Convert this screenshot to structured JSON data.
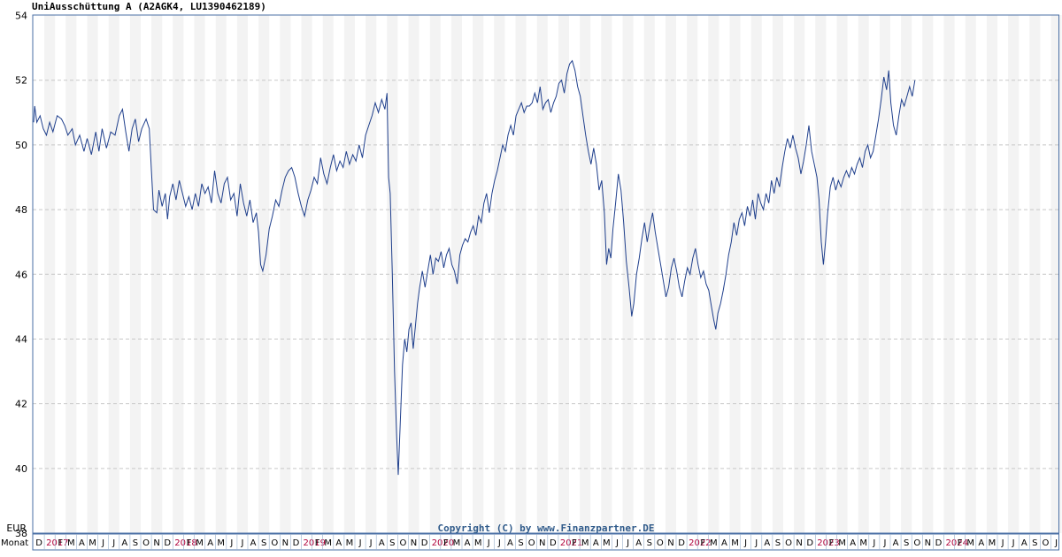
{
  "chart_data": {
    "type": "line",
    "title": "UniAusschüttung A (A2AGK4, LU1390462189)",
    "ylabel": "EUR",
    "xlabel": "Monat",
    "ylim": [
      38,
      54
    ],
    "yticks": [
      38,
      40,
      42,
      44,
      46,
      48,
      50,
      52,
      54
    ],
    "grid": true,
    "copyright": "Copyright (C) by www.Finanzpartner.DE",
    "x_start": "2016-12",
    "month_letters": [
      "J",
      "F",
      "M",
      "A",
      "M",
      "J",
      "J",
      "A",
      "S",
      "O",
      "N",
      "D"
    ],
    "year_labels": [
      "2017",
      "2018",
      "2019",
      "2020",
      "2021",
      "2022",
      "2023",
      "2024",
      "2025",
      "2026"
    ],
    "first_month_label": "D",
    "last_month_label": "J",
    "colors": {
      "line": "#1f3f8c",
      "axis": "#4a6fa5",
      "year": "#b0003a",
      "band": "#f3f3f3",
      "copyright": "#2f5a8a"
    },
    "series": [
      {
        "values": [
          [
            0,
            50.7
          ],
          [
            0.1,
            51.2
          ],
          [
            0.3,
            50.7
          ],
          [
            0.6,
            50.9
          ],
          [
            0.9,
            50.5
          ],
          [
            1.2,
            50.3
          ],
          [
            1.5,
            50.7
          ],
          [
            1.8,
            50.4
          ],
          [
            2.2,
            50.9
          ],
          [
            2.6,
            50.8
          ],
          [
            2.9,
            50.6
          ],
          [
            3.2,
            50.3
          ],
          [
            3.6,
            50.5
          ],
          [
            3.9,
            50.0
          ],
          [
            4.3,
            50.3
          ],
          [
            4.7,
            49.8
          ],
          [
            5.0,
            50.2
          ],
          [
            5.4,
            49.7
          ],
          [
            5.8,
            50.4
          ],
          [
            6.1,
            49.8
          ],
          [
            6.4,
            50.5
          ],
          [
            6.8,
            49.9
          ],
          [
            7.2,
            50.4
          ],
          [
            7.6,
            50.3
          ],
          [
            8.0,
            50.9
          ],
          [
            8.3,
            51.1
          ],
          [
            8.6,
            50.4
          ],
          [
            8.9,
            49.8
          ],
          [
            9.2,
            50.5
          ],
          [
            9.5,
            50.8
          ],
          [
            9.8,
            50.1
          ],
          [
            10.1,
            50.5
          ],
          [
            10.5,
            50.8
          ],
          [
            10.8,
            50.5
          ],
          [
            11.0,
            49.2
          ],
          [
            11.2,
            48.0
          ],
          [
            11.5,
            47.9
          ],
          [
            11.7,
            48.6
          ],
          [
            12.0,
            48.1
          ],
          [
            12.3,
            48.5
          ],
          [
            12.5,
            47.7
          ],
          [
            12.7,
            48.4
          ],
          [
            13.0,
            48.8
          ],
          [
            13.3,
            48.3
          ],
          [
            13.6,
            48.9
          ],
          [
            13.9,
            48.5
          ],
          [
            14.2,
            48.1
          ],
          [
            14.5,
            48.4
          ],
          [
            14.8,
            48.0
          ],
          [
            15.1,
            48.5
          ],
          [
            15.4,
            48.1
          ],
          [
            15.7,
            48.8
          ],
          [
            16.0,
            48.5
          ],
          [
            16.3,
            48.7
          ],
          [
            16.6,
            48.2
          ],
          [
            16.9,
            49.2
          ],
          [
            17.2,
            48.5
          ],
          [
            17.5,
            48.2
          ],
          [
            17.8,
            48.8
          ],
          [
            18.1,
            49.0
          ],
          [
            18.4,
            48.3
          ],
          [
            18.7,
            48.5
          ],
          [
            19.0,
            47.8
          ],
          [
            19.3,
            48.8
          ],
          [
            19.6,
            48.2
          ],
          [
            19.9,
            47.8
          ],
          [
            20.2,
            48.3
          ],
          [
            20.5,
            47.6
          ],
          [
            20.8,
            47.9
          ],
          [
            21.0,
            47.3
          ],
          [
            21.2,
            46.3
          ],
          [
            21.4,
            46.1
          ],
          [
            21.7,
            46.6
          ],
          [
            22.0,
            47.4
          ],
          [
            22.3,
            47.8
          ],
          [
            22.6,
            48.3
          ],
          [
            22.9,
            48.1
          ],
          [
            23.2,
            48.6
          ],
          [
            23.5,
            49.0
          ],
          [
            23.8,
            49.2
          ],
          [
            24.1,
            49.3
          ],
          [
            24.4,
            49.0
          ],
          [
            24.7,
            48.5
          ],
          [
            25.0,
            48.1
          ],
          [
            25.3,
            47.8
          ],
          [
            25.6,
            48.3
          ],
          [
            25.9,
            48.6
          ],
          [
            26.2,
            49.0
          ],
          [
            26.5,
            48.8
          ],
          [
            26.8,
            49.6
          ],
          [
            27.1,
            49.1
          ],
          [
            27.4,
            48.8
          ],
          [
            27.7,
            49.3
          ],
          [
            28.0,
            49.7
          ],
          [
            28.3,
            49.2
          ],
          [
            28.6,
            49.5
          ],
          [
            28.9,
            49.3
          ],
          [
            29.2,
            49.8
          ],
          [
            29.5,
            49.4
          ],
          [
            29.8,
            49.7
          ],
          [
            30.1,
            49.5
          ],
          [
            30.4,
            50.0
          ],
          [
            30.7,
            49.6
          ],
          [
            31.0,
            50.3
          ],
          [
            31.3,
            50.6
          ],
          [
            31.6,
            50.9
          ],
          [
            31.9,
            51.3
          ],
          [
            32.2,
            51.0
          ],
          [
            32.5,
            51.4
          ],
          [
            32.8,
            51.1
          ],
          [
            33.0,
            51.6
          ],
          [
            33.15,
            49.0
          ],
          [
            33.3,
            48.5
          ],
          [
            33.5,
            46.0
          ],
          [
            33.7,
            43.0
          ],
          [
            33.9,
            41.0
          ],
          [
            34.05,
            39.8
          ],
          [
            34.25,
            41.5
          ],
          [
            34.45,
            43.2
          ],
          [
            34.65,
            44.0
          ],
          [
            34.85,
            43.6
          ],
          [
            35.05,
            44.3
          ],
          [
            35.25,
            44.5
          ],
          [
            35.45,
            43.7
          ],
          [
            35.65,
            44.4
          ],
          [
            35.85,
            45.1
          ],
          [
            36.05,
            45.6
          ],
          [
            36.3,
            46.1
          ],
          [
            36.55,
            45.6
          ],
          [
            36.8,
            46.1
          ],
          [
            37.05,
            46.6
          ],
          [
            37.3,
            46.0
          ],
          [
            37.55,
            46.5
          ],
          [
            37.8,
            46.4
          ],
          [
            38.05,
            46.7
          ],
          [
            38.3,
            46.2
          ],
          [
            38.55,
            46.6
          ],
          [
            38.8,
            46.8
          ],
          [
            39.05,
            46.3
          ],
          [
            39.3,
            46.1
          ],
          [
            39.55,
            45.7
          ],
          [
            39.8,
            46.6
          ],
          [
            40.05,
            46.9
          ],
          [
            40.3,
            47.1
          ],
          [
            40.55,
            47.0
          ],
          [
            40.8,
            47.3
          ],
          [
            41.05,
            47.5
          ],
          [
            41.3,
            47.2
          ],
          [
            41.55,
            47.8
          ],
          [
            41.8,
            47.6
          ],
          [
            42.05,
            48.2
          ],
          [
            42.3,
            48.5
          ],
          [
            42.55,
            47.9
          ],
          [
            42.8,
            48.5
          ],
          [
            43.05,
            48.9
          ],
          [
            43.3,
            49.2
          ],
          [
            43.55,
            49.6
          ],
          [
            43.8,
            50.0
          ],
          [
            44.05,
            49.8
          ],
          [
            44.3,
            50.3
          ],
          [
            44.55,
            50.6
          ],
          [
            44.8,
            50.3
          ],
          [
            45.05,
            50.9
          ],
          [
            45.3,
            51.1
          ],
          [
            45.55,
            51.3
          ],
          [
            45.8,
            51.0
          ],
          [
            46.05,
            51.2
          ],
          [
            46.3,
            51.2
          ],
          [
            46.55,
            51.3
          ],
          [
            46.8,
            51.6
          ],
          [
            47.05,
            51.3
          ],
          [
            47.3,
            51.8
          ],
          [
            47.55,
            51.1
          ],
          [
            47.8,
            51.3
          ],
          [
            48.05,
            51.4
          ],
          [
            48.3,
            51.0
          ],
          [
            48.55,
            51.3
          ],
          [
            48.8,
            51.5
          ],
          [
            49.05,
            51.9
          ],
          [
            49.3,
            52.0
          ],
          [
            49.55,
            51.6
          ],
          [
            49.8,
            52.2
          ],
          [
            50.05,
            52.5
          ],
          [
            50.3,
            52.6
          ],
          [
            50.55,
            52.3
          ],
          [
            50.8,
            51.8
          ],
          [
            51.05,
            51.5
          ],
          [
            51.3,
            50.9
          ],
          [
            51.55,
            50.3
          ],
          [
            51.8,
            49.8
          ],
          [
            52.05,
            49.4
          ],
          [
            52.3,
            49.9
          ],
          [
            52.55,
            49.4
          ],
          [
            52.8,
            48.6
          ],
          [
            53.05,
            48.9
          ],
          [
            53.3,
            47.9
          ],
          [
            53.5,
            46.3
          ],
          [
            53.7,
            46.8
          ],
          [
            53.9,
            46.5
          ],
          [
            54.1,
            47.4
          ],
          [
            54.35,
            48.2
          ],
          [
            54.6,
            49.1
          ],
          [
            54.85,
            48.6
          ],
          [
            55.1,
            47.6
          ],
          [
            55.35,
            46.4
          ],
          [
            55.6,
            45.6
          ],
          [
            55.85,
            44.7
          ],
          [
            56.05,
            45.1
          ],
          [
            56.3,
            46.0
          ],
          [
            56.55,
            46.5
          ],
          [
            56.8,
            47.1
          ],
          [
            57.05,
            47.6
          ],
          [
            57.3,
            47.0
          ],
          [
            57.55,
            47.5
          ],
          [
            57.8,
            47.9
          ],
          [
            58.05,
            47.3
          ],
          [
            58.3,
            46.8
          ],
          [
            58.55,
            46.3
          ],
          [
            58.8,
            45.8
          ],
          [
            59.05,
            45.3
          ],
          [
            59.3,
            45.6
          ],
          [
            59.55,
            46.2
          ],
          [
            59.8,
            46.5
          ],
          [
            60.05,
            46.1
          ],
          [
            60.3,
            45.6
          ],
          [
            60.55,
            45.3
          ],
          [
            60.8,
            45.8
          ],
          [
            61.05,
            46.2
          ],
          [
            61.3,
            46.0
          ],
          [
            61.55,
            46.5
          ],
          [
            61.8,
            46.8
          ],
          [
            62.05,
            46.3
          ],
          [
            62.3,
            45.9
          ],
          [
            62.55,
            46.1
          ],
          [
            62.8,
            45.7
          ],
          [
            63.05,
            45.5
          ],
          [
            63.3,
            45.0
          ],
          [
            63.5,
            44.6
          ],
          [
            63.7,
            44.3
          ],
          [
            63.9,
            44.8
          ],
          [
            64.15,
            45.1
          ],
          [
            64.4,
            45.5
          ],
          [
            64.65,
            46.0
          ],
          [
            64.9,
            46.6
          ],
          [
            65.15,
            47.0
          ],
          [
            65.4,
            47.6
          ],
          [
            65.65,
            47.2
          ],
          [
            65.9,
            47.7
          ],
          [
            66.15,
            47.9
          ],
          [
            66.4,
            47.5
          ],
          [
            66.65,
            48.1
          ],
          [
            66.9,
            47.8
          ],
          [
            67.15,
            48.3
          ],
          [
            67.4,
            47.7
          ],
          [
            67.65,
            48.5
          ],
          [
            67.9,
            48.2
          ],
          [
            68.15,
            48.0
          ],
          [
            68.4,
            48.5
          ],
          [
            68.65,
            48.2
          ],
          [
            68.9,
            48.9
          ],
          [
            69.15,
            48.5
          ],
          [
            69.4,
            49.0
          ],
          [
            69.65,
            48.7
          ],
          [
            69.9,
            49.3
          ],
          [
            70.15,
            49.8
          ],
          [
            70.4,
            50.2
          ],
          [
            70.65,
            49.9
          ],
          [
            70.9,
            50.3
          ],
          [
            71.15,
            49.9
          ],
          [
            71.4,
            49.6
          ],
          [
            71.65,
            49.1
          ],
          [
            71.9,
            49.5
          ],
          [
            72.15,
            50.0
          ],
          [
            72.4,
            50.6
          ],
          [
            72.65,
            49.8
          ],
          [
            72.9,
            49.4
          ],
          [
            73.15,
            49.0
          ],
          [
            73.35,
            48.3
          ],
          [
            73.55,
            47.0
          ],
          [
            73.75,
            46.3
          ],
          [
            73.95,
            47.0
          ],
          [
            74.15,
            47.9
          ],
          [
            74.4,
            48.7
          ],
          [
            74.65,
            49.0
          ],
          [
            74.9,
            48.6
          ],
          [
            75.15,
            48.9
          ],
          [
            75.4,
            48.7
          ],
          [
            75.65,
            49.0
          ],
          [
            75.9,
            49.2
          ],
          [
            76.15,
            49.0
          ],
          [
            76.4,
            49.3
          ],
          [
            76.65,
            49.1
          ],
          [
            76.9,
            49.4
          ],
          [
            77.15,
            49.6
          ],
          [
            77.4,
            49.3
          ],
          [
            77.65,
            49.8
          ],
          [
            77.9,
            50.0
          ],
          [
            78.15,
            49.6
          ],
          [
            78.4,
            49.8
          ],
          [
            78.65,
            50.3
          ],
          [
            78.9,
            50.8
          ],
          [
            79.15,
            51.4
          ],
          [
            79.4,
            52.1
          ],
          [
            79.65,
            51.7
          ],
          [
            79.85,
            52.3
          ],
          [
            80.05,
            51.3
          ],
          [
            80.3,
            50.6
          ],
          [
            80.55,
            50.3
          ],
          [
            80.8,
            50.9
          ],
          [
            81.05,
            51.4
          ],
          [
            81.3,
            51.2
          ],
          [
            81.55,
            51.5
          ],
          [
            81.8,
            51.8
          ],
          [
            82.05,
            51.5
          ],
          [
            82.3,
            52.0
          ]
        ]
      }
    ]
  }
}
